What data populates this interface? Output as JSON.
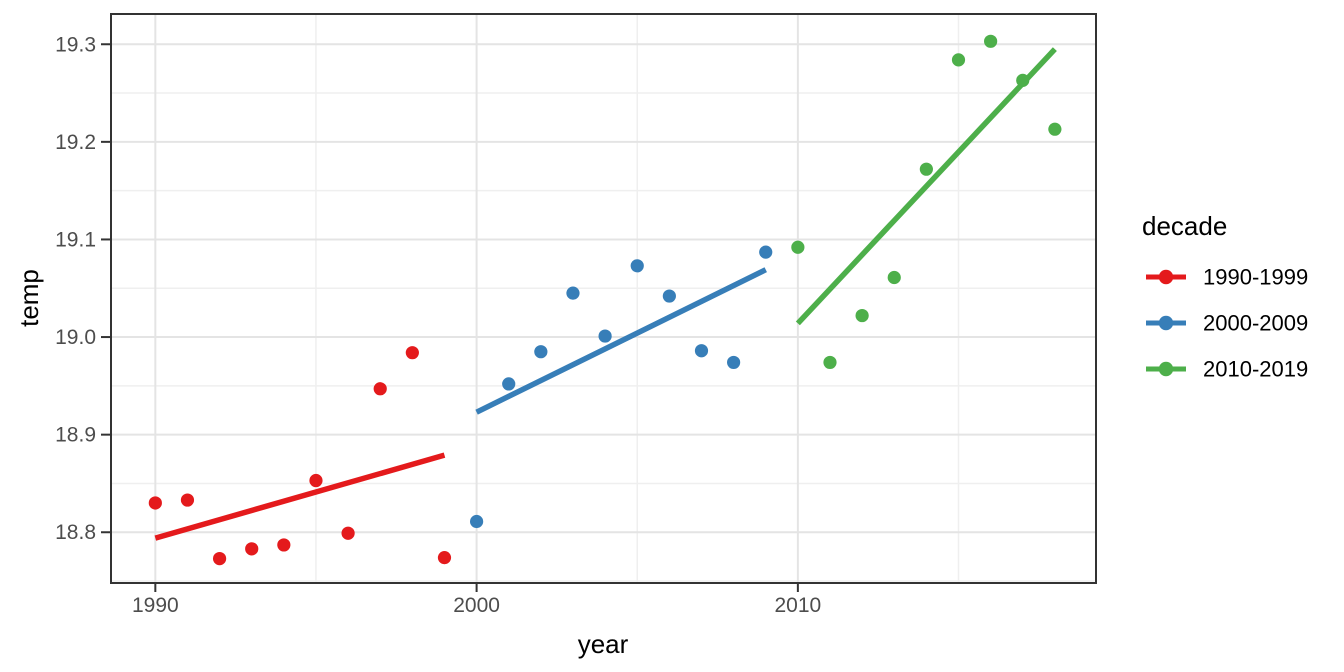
{
  "chart_data": {
    "type": "scatter",
    "title": "",
    "xlabel": "year",
    "ylabel": "temp",
    "legend_title": "decade",
    "legend_position": "right",
    "grid": true,
    "xlim": [
      1988.62,
      2019.28
    ],
    "ylim": [
      18.748,
      19.331
    ],
    "x_ticks": [
      {
        "value": 1990,
        "label": "1990"
      },
      {
        "value": 2000,
        "label": "2000"
      },
      {
        "value": 2010,
        "label": "2010"
      }
    ],
    "x_minor_ticks": [
      1995,
      2005,
      2015
    ],
    "y_ticks": [
      {
        "value": 18.8,
        "label": "18.8"
      },
      {
        "value": 18.9,
        "label": "18.9"
      },
      {
        "value": 19.0,
        "label": "19.0"
      },
      {
        "value": 19.1,
        "label": "19.1"
      },
      {
        "value": 19.2,
        "label": "19.2"
      },
      {
        "value": 19.3,
        "label": "19.3"
      }
    ],
    "y_minor_ticks": [
      18.75,
      18.85,
      18.95,
      19.05,
      19.15,
      19.25
    ],
    "series": [
      {
        "name": "1990-1999",
        "color": "#E41A1C",
        "points": [
          [
            1990,
            18.83
          ],
          [
            1991,
            18.833
          ],
          [
            1992,
            18.773
          ],
          [
            1993,
            18.783
          ],
          [
            1994,
            18.787
          ],
          [
            1995,
            18.853
          ],
          [
            1996,
            18.799
          ],
          [
            1997,
            18.947
          ],
          [
            1998,
            18.984
          ],
          [
            1999,
            18.774
          ]
        ],
        "trend": {
          "x": [
            1990,
            1999
          ],
          "y": [
            18.794,
            18.879
          ]
        }
      },
      {
        "name": "2000-2009",
        "color": "#377EB8",
        "points": [
          [
            2000,
            18.811
          ],
          [
            2001,
            18.952
          ],
          [
            2002,
            18.985
          ],
          [
            2003,
            19.045
          ],
          [
            2004,
            19.001
          ],
          [
            2005,
            19.073
          ],
          [
            2006,
            19.042
          ],
          [
            2007,
            18.986
          ],
          [
            2008,
            18.974
          ],
          [
            2009,
            19.087
          ]
        ],
        "trend": {
          "x": [
            2000,
            2009
          ],
          "y": [
            18.923,
            19.069
          ]
        }
      },
      {
        "name": "2010-2019",
        "color": "#4DAF4A",
        "points": [
          [
            2010,
            19.092
          ],
          [
            2011,
            18.974
          ],
          [
            2012,
            19.022
          ],
          [
            2013,
            19.061
          ],
          [
            2014,
            19.172
          ],
          [
            2015,
            19.284
          ],
          [
            2016,
            19.303
          ],
          [
            2017,
            19.263
          ],
          [
            2018,
            19.213
          ]
        ],
        "trend": {
          "x": [
            2010,
            2018
          ],
          "y": [
            19.014,
            19.295
          ]
        }
      }
    ],
    "colors": {
      "background": "#FFFFFF",
      "panel_background": "#FFFFFF",
      "panel_border": "#333333",
      "grid_major": "#E4E4E4",
      "grid_minor": "#EFEFEF",
      "tick_mark": "#333333",
      "tick_label": "#4D4D4D",
      "axis_title": "#000000",
      "legend_text": "#000000"
    }
  }
}
